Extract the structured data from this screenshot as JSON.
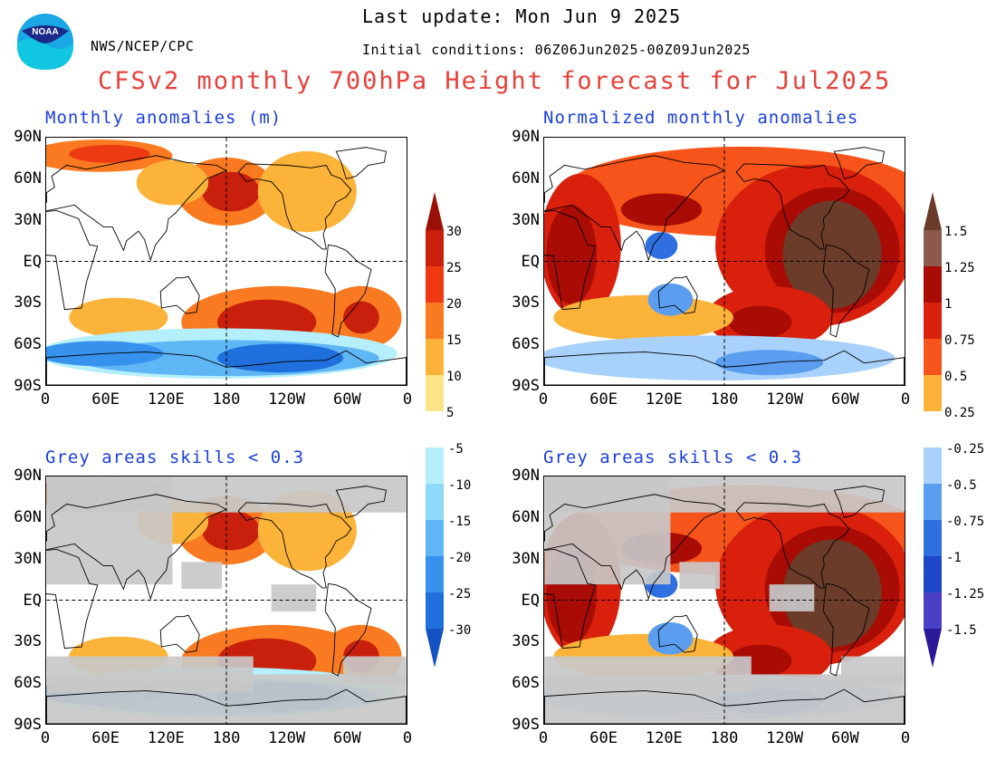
{
  "header": {
    "last_update": "Last update: Mon Jun 9 2025",
    "initial_conditions": "Initial conditions: 06Z06Jun2025-00Z09Jun2025",
    "org": "NWS/NCEP/CPC",
    "title": "CFSv2 monthly 700hPa Height forecast for Jul2025",
    "logo_text": "NOAA"
  },
  "panels": [
    {
      "id": "tl",
      "title": "Monthly anomalies (m)",
      "mode": "abs",
      "skill": false
    },
    {
      "id": "tr",
      "title": "Normalized monthly anomalies",
      "mode": "norm",
      "skill": false
    },
    {
      "id": "bl",
      "title": "Grey areas skills < 0.3",
      "mode": "abs",
      "skill": true
    },
    {
      "id": "br",
      "title": "Grey areas skills < 0.3",
      "mode": "norm",
      "skill": true
    }
  ],
  "axes": {
    "lat_labels": [
      "90N",
      "60N",
      "30N",
      "EQ",
      "30S",
      "60S",
      "90S"
    ],
    "lon_labels": [
      "0",
      "60E",
      "120E",
      "180",
      "120W",
      "60W",
      "0"
    ]
  },
  "colorbar_left": {
    "labels_pos": [
      "30",
      "25",
      "20",
      "15",
      "10",
      "5"
    ],
    "labels_neg": [
      "-5",
      "-10",
      "-15",
      "-20",
      "-25",
      "-30"
    ]
  },
  "colorbar_right": {
    "labels_pos": [
      "1.5",
      "1.25",
      "1",
      "0.75",
      "0.5",
      "0.25"
    ],
    "labels_neg": [
      "-0.25",
      "-0.5",
      "-0.75",
      "-1",
      "-1.25",
      "-1.5"
    ]
  },
  "colors": {
    "warm_abs": [
      "#fde387",
      "#fbb33a",
      "#f97a20",
      "#ee3a12",
      "#c8200c",
      "#9b1006"
    ],
    "cool_abs": [
      "#b5effb",
      "#8ed8fa",
      "#5fb6f5",
      "#3692ec",
      "#1f6fdc",
      "#1552c4"
    ],
    "warm_norm": [
      "#fbb33a",
      "#f6541a",
      "#d8200c",
      "#a80c04",
      "#8a5a4e",
      "#6b3c2a"
    ],
    "cool_norm": [
      "#a8d2fb",
      "#5b9ef0",
      "#2f6fe0",
      "#1f48c8",
      "#4a3fc4",
      "#2a1a9a"
    ],
    "grey": "#c8c8c8",
    "title_red": "#e8403a",
    "title_blue": "#1a3fe0"
  }
}
